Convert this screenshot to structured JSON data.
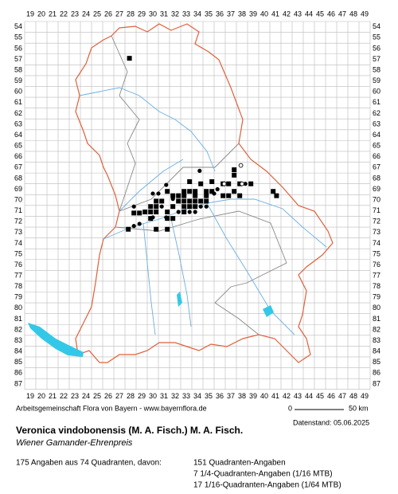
{
  "map": {
    "columns": [
      19,
      20,
      21,
      22,
      23,
      24,
      25,
      26,
      27,
      28,
      29,
      30,
      31,
      32,
      33,
      34,
      35,
      36,
      37,
      38,
      39,
      40,
      41,
      42,
      43,
      44,
      45,
      46,
      47,
      48,
      49
    ],
    "rows": [
      54,
      55,
      56,
      57,
      58,
      59,
      60,
      61,
      62,
      63,
      64,
      65,
      66,
      67,
      68,
      69,
      70,
      71,
      72,
      73,
      74,
      75,
      76,
      77,
      78,
      79,
      80,
      81,
      82,
      83,
      84,
      85,
      86,
      87
    ],
    "records": [
      [
        27.9,
        56.9,
        "square"
      ],
      [
        37.3,
        67.2,
        "square"
      ],
      [
        37.3,
        67.7,
        "square"
      ],
      [
        33.3,
        68.3,
        "square"
      ],
      [
        34.3,
        68.5,
        "square"
      ],
      [
        35.3,
        68.3,
        "square"
      ],
      [
        36.3,
        68.5,
        "square"
      ],
      [
        36.8,
        68.5,
        "square"
      ],
      [
        37.8,
        68.5,
        "square"
      ],
      [
        38.8,
        68.5,
        "square"
      ],
      [
        31.3,
        69.2,
        "square"
      ],
      [
        32.8,
        69.2,
        "square"
      ],
      [
        33.3,
        69.2,
        "square"
      ],
      [
        33.8,
        69.2,
        "square"
      ],
      [
        34.8,
        69.2,
        "square"
      ],
      [
        35.3,
        69.2,
        "square"
      ],
      [
        37.3,
        69.2,
        "square"
      ],
      [
        40.8,
        69.2,
        "square"
      ],
      [
        37.8,
        69.6,
        "square"
      ],
      [
        36.8,
        69.6,
        "square"
      ],
      [
        36.3,
        69.6,
        "square"
      ],
      [
        34.8,
        69.6,
        "square"
      ],
      [
        33.8,
        69.6,
        "square"
      ],
      [
        32.8,
        69.6,
        "square"
      ],
      [
        32.3,
        69.6,
        "square"
      ],
      [
        31.8,
        69.6,
        "square"
      ],
      [
        41.1,
        69.6,
        "square"
      ],
      [
        30.3,
        70.1,
        "square"
      ],
      [
        30.8,
        70.1,
        "square"
      ],
      [
        32.3,
        70.1,
        "square"
      ],
      [
        32.8,
        70.1,
        "square"
      ],
      [
        33.3,
        70.1,
        "square"
      ],
      [
        33.8,
        70.1,
        "square"
      ],
      [
        34.8,
        70.1,
        "square"
      ],
      [
        34.3,
        70.1,
        "square"
      ],
      [
        29.8,
        70.6,
        "square"
      ],
      [
        30.3,
        70.6,
        "square"
      ],
      [
        31.8,
        70.6,
        "square"
      ],
      [
        32.8,
        70.6,
        "square"
      ],
      [
        33.3,
        70.6,
        "square"
      ],
      [
        33.8,
        70.6,
        "square"
      ],
      [
        29.3,
        71.1,
        "square"
      ],
      [
        29.8,
        71.1,
        "square"
      ],
      [
        30.3,
        71.1,
        "square"
      ],
      [
        32.8,
        71.1,
        "square"
      ],
      [
        28.3,
        71.2,
        "square"
      ],
      [
        28.8,
        71.2,
        "square"
      ],
      [
        31.3,
        71.1,
        "square"
      ],
      [
        31.8,
        71.7,
        "square"
      ],
      [
        29.8,
        71.7,
        "square"
      ],
      [
        31.3,
        71.7,
        "square"
      ],
      [
        27.8,
        72.7,
        "square"
      ],
      [
        30.3,
        72.7,
        "square"
      ],
      [
        31.3,
        72.7,
        "square"
      ],
      [
        34.2,
        67.3,
        "dot"
      ],
      [
        31.2,
        68.6,
        "dot"
      ],
      [
        28.3,
        70.6,
        "dot"
      ],
      [
        30.0,
        69.4,
        "dot"
      ],
      [
        30.5,
        69.4,
        "dot"
      ],
      [
        28.3,
        72.4,
        "dot"
      ],
      [
        31.8,
        69.9,
        "dot"
      ],
      [
        35.5,
        69.4,
        "dot"
      ],
      [
        34.8,
        70.6,
        "dot"
      ],
      [
        33.8,
        71.1,
        "dot"
      ],
      [
        33.3,
        71.1,
        "dot"
      ],
      [
        32.3,
        71.1,
        "dot"
      ],
      [
        34.3,
        70.6,
        "dot"
      ],
      [
        35.8,
        69.0,
        "dot"
      ],
      [
        38.3,
        68.5,
        "dot"
      ],
      [
        30.8,
        70.6,
        "dot"
      ],
      [
        28.8,
        72.2,
        "dot"
      ],
      [
        30.0,
        71.6,
        "dot"
      ],
      [
        31.2,
        71.6,
        "dot"
      ],
      [
        32.8,
        70.6,
        "dot"
      ],
      [
        37.9,
        66.8,
        "open"
      ],
      [
        36.4,
        68.5,
        "open"
      ],
      [
        38.0,
        68.5,
        "open"
      ]
    ],
    "scale_start": "0",
    "scale_end": "50 km",
    "credit": "Arbeitsgemeinschaft Flora von Bayern - www.bayernflora.de",
    "date": "Datenstand: 05.06.2025",
    "title": "Veronica vindobonensis (M. A. Fisch.) M. A. Fisch.",
    "subtitle": "Wiener Gamander-Ehrenpreis",
    "summary": "175 Angaben aus 74 Quadranten, davon:",
    "counts": [
      "151 Quadranten-Angaben",
      "7 1/4-Quadranten-Angaben (1/16 MTB)",
      "17 1/16-Quadranten-Angaben (1/64 MTB)"
    ]
  }
}
